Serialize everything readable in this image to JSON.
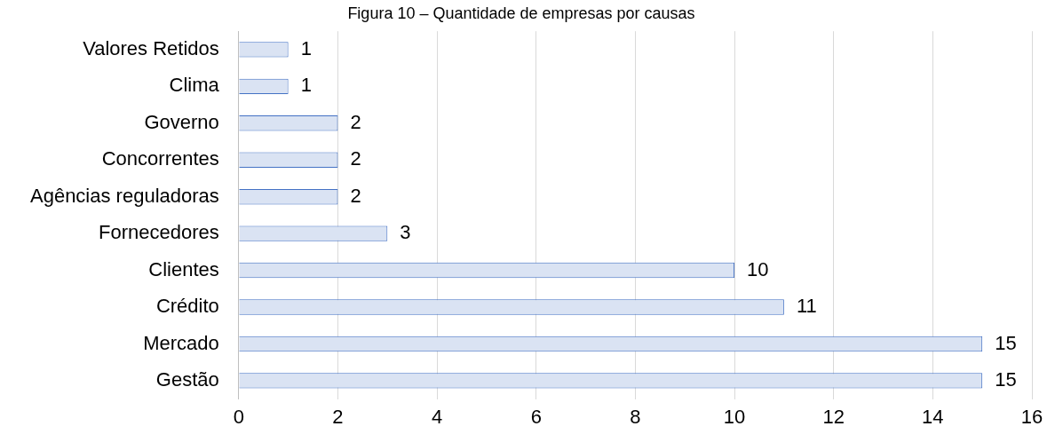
{
  "chart_data": {
    "type": "bar",
    "orientation": "horizontal",
    "title": "Figura 10 – Quantidade de empresas por causas",
    "categories": [
      "Valores Retidos",
      "Clima",
      "Governo",
      "Concorrentes",
      "Agências reguladoras",
      "Fornecedores",
      "Clientes",
      "Crédito",
      "Mercado",
      "Gestão"
    ],
    "values": [
      1,
      1,
      2,
      2,
      2,
      3,
      10,
      11,
      15,
      15
    ],
    "color": "#dae3f3",
    "xlim": [
      0,
      16
    ],
    "xticks": [
      0,
      2,
      4,
      6,
      8,
      10,
      12,
      14,
      16
    ],
    "grid": "x",
    "data_labels": true
  }
}
